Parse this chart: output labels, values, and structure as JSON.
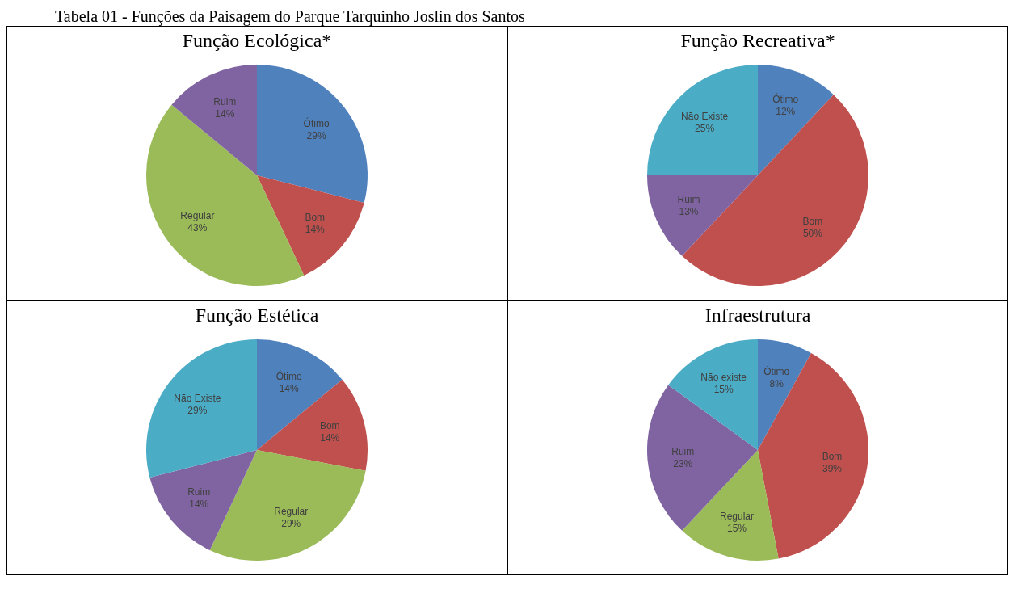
{
  "chart_data": [
    {
      "type": "pie",
      "title": "Função Ecológica*",
      "annotations": [
        "Tabela 01 - Funções da Paisagem do Parque Tarquinho Joslin dos Santos"
      ],
      "categories": [
        "Ótimo",
        "Bom",
        "Regular",
        "Ruim"
      ],
      "values": [
        29,
        14,
        43,
        14
      ],
      "value_labels": [
        "29%",
        "14%",
        "43%",
        "14%"
      ],
      "colors": [
        "#4f81bd",
        "#c0504d",
        "#9bbb59",
        "#8064a2"
      ]
    },
    {
      "type": "pie",
      "title": "Função  Recreativa*",
      "categories": [
        "Ótimo",
        "Bom",
        "Ruim",
        "Não Existe"
      ],
      "values": [
        12,
        50,
        13,
        25
      ],
      "value_labels": [
        "12%",
        "50%",
        "13%",
        "25%"
      ],
      "colors": [
        "#4f81bd",
        "#c0504d",
        "#8064a2",
        "#4bacc6"
      ]
    },
    {
      "type": "pie",
      "title": "Função Estética",
      "categories": [
        "Ótimo",
        "Bom",
        "Regular",
        "Ruim",
        "Não Existe"
      ],
      "values": [
        14,
        14,
        29,
        14,
        29
      ],
      "value_labels": [
        "14%",
        "14%",
        "29%",
        "14%",
        "29%"
      ],
      "colors": [
        "#4f81bd",
        "#c0504d",
        "#9bbb59",
        "#8064a2",
        "#4bacc6"
      ]
    },
    {
      "type": "pie",
      "title": "Infraestrutura",
      "categories": [
        "Ótimo",
        "Bom",
        "Regular",
        "Ruim",
        "Não existe"
      ],
      "values": [
        8,
        39,
        15,
        23,
        15
      ],
      "value_labels": [
        "8%",
        "39%",
        "15%",
        "23%",
        "15%"
      ],
      "colors": [
        "#4f81bd",
        "#c0504d",
        "#9bbb59",
        "#8064a2",
        "#4bacc6"
      ]
    }
  ]
}
